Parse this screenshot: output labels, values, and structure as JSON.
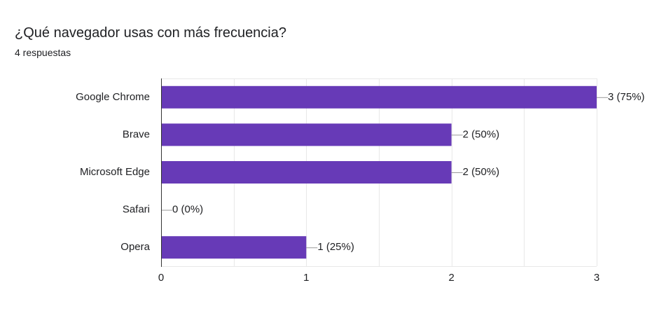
{
  "header": {
    "question": "¿Qué navegador usas con más frecuencia?",
    "responses": "4 respuestas"
  },
  "colors": {
    "bar": "#673ab7",
    "gridline": "#e8e8e8",
    "axis": "#333333",
    "leader": "#999999",
    "text": "#202124"
  },
  "chart_data": {
    "type": "bar",
    "orientation": "horizontal",
    "title": "¿Qué navegador usas con más frecuencia?",
    "subtitle": "4 respuestas",
    "categories": [
      "Google Chrome",
      "Brave",
      "Microsoft Edge",
      "Safari",
      "Opera"
    ],
    "values": [
      3,
      2,
      2,
      0,
      1
    ],
    "value_labels": [
      "3 (75%)",
      "2 (50%)",
      "2 (50%)",
      "0 (0%)",
      "1 (25%)"
    ],
    "xticks": [
      0,
      1,
      2,
      3
    ],
    "xlim": [
      0,
      3
    ],
    "grid": true,
    "legend": "none"
  }
}
